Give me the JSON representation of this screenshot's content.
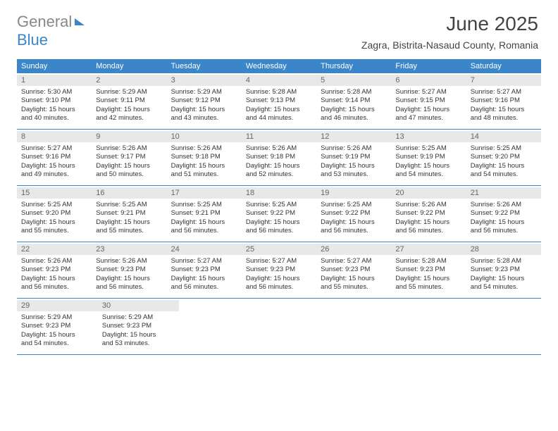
{
  "logo": {
    "word1": "General",
    "word2": "Blue"
  },
  "title": "June 2025",
  "location": "Zagra, Bistrita-Nasaud County, Romania",
  "colors": {
    "header_bg": "#3a86c8",
    "header_text": "#ffffff",
    "daynum_bg": "#e8e8e8",
    "daynum_text": "#666666",
    "body_text": "#333333",
    "divider": "#3a86c8"
  },
  "weekdays": [
    "Sunday",
    "Monday",
    "Tuesday",
    "Wednesday",
    "Thursday",
    "Friday",
    "Saturday"
  ],
  "weeks": [
    [
      {
        "n": "1",
        "sr": "Sunrise: 5:30 AM",
        "ss": "Sunset: 9:10 PM",
        "d1": "Daylight: 15 hours",
        "d2": "and 40 minutes."
      },
      {
        "n": "2",
        "sr": "Sunrise: 5:29 AM",
        "ss": "Sunset: 9:11 PM",
        "d1": "Daylight: 15 hours",
        "d2": "and 42 minutes."
      },
      {
        "n": "3",
        "sr": "Sunrise: 5:29 AM",
        "ss": "Sunset: 9:12 PM",
        "d1": "Daylight: 15 hours",
        "d2": "and 43 minutes."
      },
      {
        "n": "4",
        "sr": "Sunrise: 5:28 AM",
        "ss": "Sunset: 9:13 PM",
        "d1": "Daylight: 15 hours",
        "d2": "and 44 minutes."
      },
      {
        "n": "5",
        "sr": "Sunrise: 5:28 AM",
        "ss": "Sunset: 9:14 PM",
        "d1": "Daylight: 15 hours",
        "d2": "and 46 minutes."
      },
      {
        "n": "6",
        "sr": "Sunrise: 5:27 AM",
        "ss": "Sunset: 9:15 PM",
        "d1": "Daylight: 15 hours",
        "d2": "and 47 minutes."
      },
      {
        "n": "7",
        "sr": "Sunrise: 5:27 AM",
        "ss": "Sunset: 9:16 PM",
        "d1": "Daylight: 15 hours",
        "d2": "and 48 minutes."
      }
    ],
    [
      {
        "n": "8",
        "sr": "Sunrise: 5:27 AM",
        "ss": "Sunset: 9:16 PM",
        "d1": "Daylight: 15 hours",
        "d2": "and 49 minutes."
      },
      {
        "n": "9",
        "sr": "Sunrise: 5:26 AM",
        "ss": "Sunset: 9:17 PM",
        "d1": "Daylight: 15 hours",
        "d2": "and 50 minutes."
      },
      {
        "n": "10",
        "sr": "Sunrise: 5:26 AM",
        "ss": "Sunset: 9:18 PM",
        "d1": "Daylight: 15 hours",
        "d2": "and 51 minutes."
      },
      {
        "n": "11",
        "sr": "Sunrise: 5:26 AM",
        "ss": "Sunset: 9:18 PM",
        "d1": "Daylight: 15 hours",
        "d2": "and 52 minutes."
      },
      {
        "n": "12",
        "sr": "Sunrise: 5:26 AM",
        "ss": "Sunset: 9:19 PM",
        "d1": "Daylight: 15 hours",
        "d2": "and 53 minutes."
      },
      {
        "n": "13",
        "sr": "Sunrise: 5:25 AM",
        "ss": "Sunset: 9:19 PM",
        "d1": "Daylight: 15 hours",
        "d2": "and 54 minutes."
      },
      {
        "n": "14",
        "sr": "Sunrise: 5:25 AM",
        "ss": "Sunset: 9:20 PM",
        "d1": "Daylight: 15 hours",
        "d2": "and 54 minutes."
      }
    ],
    [
      {
        "n": "15",
        "sr": "Sunrise: 5:25 AM",
        "ss": "Sunset: 9:20 PM",
        "d1": "Daylight: 15 hours",
        "d2": "and 55 minutes."
      },
      {
        "n": "16",
        "sr": "Sunrise: 5:25 AM",
        "ss": "Sunset: 9:21 PM",
        "d1": "Daylight: 15 hours",
        "d2": "and 55 minutes."
      },
      {
        "n": "17",
        "sr": "Sunrise: 5:25 AM",
        "ss": "Sunset: 9:21 PM",
        "d1": "Daylight: 15 hours",
        "d2": "and 56 minutes."
      },
      {
        "n": "18",
        "sr": "Sunrise: 5:25 AM",
        "ss": "Sunset: 9:22 PM",
        "d1": "Daylight: 15 hours",
        "d2": "and 56 minutes."
      },
      {
        "n": "19",
        "sr": "Sunrise: 5:25 AM",
        "ss": "Sunset: 9:22 PM",
        "d1": "Daylight: 15 hours",
        "d2": "and 56 minutes."
      },
      {
        "n": "20",
        "sr": "Sunrise: 5:26 AM",
        "ss": "Sunset: 9:22 PM",
        "d1": "Daylight: 15 hours",
        "d2": "and 56 minutes."
      },
      {
        "n": "21",
        "sr": "Sunrise: 5:26 AM",
        "ss": "Sunset: 9:22 PM",
        "d1": "Daylight: 15 hours",
        "d2": "and 56 minutes."
      }
    ],
    [
      {
        "n": "22",
        "sr": "Sunrise: 5:26 AM",
        "ss": "Sunset: 9:23 PM",
        "d1": "Daylight: 15 hours",
        "d2": "and 56 minutes."
      },
      {
        "n": "23",
        "sr": "Sunrise: 5:26 AM",
        "ss": "Sunset: 9:23 PM",
        "d1": "Daylight: 15 hours",
        "d2": "and 56 minutes."
      },
      {
        "n": "24",
        "sr": "Sunrise: 5:27 AM",
        "ss": "Sunset: 9:23 PM",
        "d1": "Daylight: 15 hours",
        "d2": "and 56 minutes."
      },
      {
        "n": "25",
        "sr": "Sunrise: 5:27 AM",
        "ss": "Sunset: 9:23 PM",
        "d1": "Daylight: 15 hours",
        "d2": "and 56 minutes."
      },
      {
        "n": "26",
        "sr": "Sunrise: 5:27 AM",
        "ss": "Sunset: 9:23 PM",
        "d1": "Daylight: 15 hours",
        "d2": "and 55 minutes."
      },
      {
        "n": "27",
        "sr": "Sunrise: 5:28 AM",
        "ss": "Sunset: 9:23 PM",
        "d1": "Daylight: 15 hours",
        "d2": "and 55 minutes."
      },
      {
        "n": "28",
        "sr": "Sunrise: 5:28 AM",
        "ss": "Sunset: 9:23 PM",
        "d1": "Daylight: 15 hours",
        "d2": "and 54 minutes."
      }
    ],
    [
      {
        "n": "29",
        "sr": "Sunrise: 5:29 AM",
        "ss": "Sunset: 9:23 PM",
        "d1": "Daylight: 15 hours",
        "d2": "and 54 minutes."
      },
      {
        "n": "30",
        "sr": "Sunrise: 5:29 AM",
        "ss": "Sunset: 9:23 PM",
        "d1": "Daylight: 15 hours",
        "d2": "and 53 minutes."
      },
      null,
      null,
      null,
      null,
      null
    ]
  ]
}
